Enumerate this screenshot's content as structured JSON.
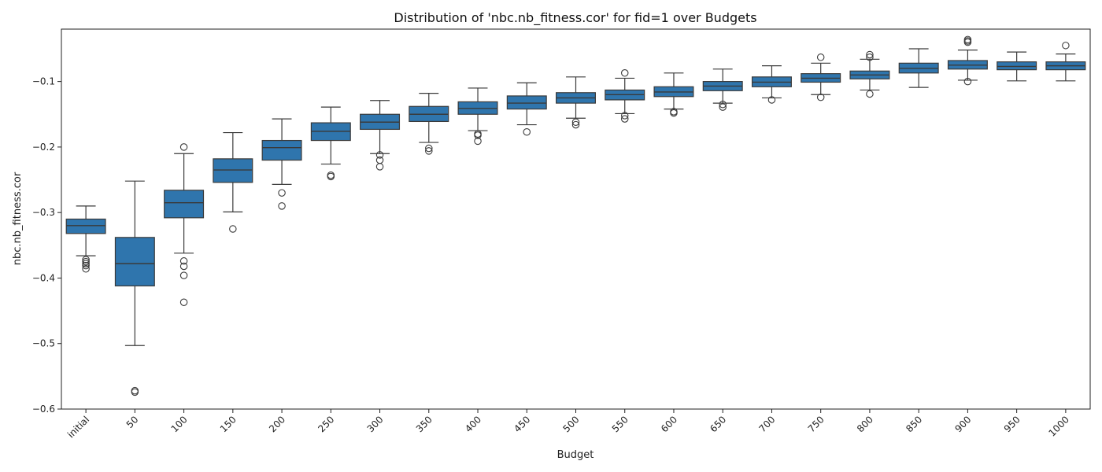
{
  "chart_data": {
    "type": "box",
    "title": "Distribution of 'nbc.nb_fitness.cor' for fid=1 over Budgets",
    "xlabel": "Budget",
    "ylabel": "nbc.nb_fitness.cor",
    "ylim": [
      -0.6,
      -0.02
    ],
    "y_ticks": [
      -0.6,
      -0.5,
      -0.4,
      -0.3,
      -0.2,
      -0.1
    ],
    "y_tick_labels": [
      "−0.6",
      "−0.5",
      "−0.4",
      "−0.3",
      "−0.2",
      "−0.1"
    ],
    "grid": false,
    "box_color": "#2f75ad",
    "line_color": "#3a3a3a",
    "categories": [
      "initial",
      "50",
      "100",
      "150",
      "200",
      "250",
      "300",
      "350",
      "400",
      "450",
      "500",
      "550",
      "600",
      "650",
      "700",
      "750",
      "800",
      "850",
      "900",
      "950",
      "1000"
    ],
    "boxes": [
      {
        "whislo": -0.366,
        "q1": -0.332,
        "med": -0.32,
        "q3": -0.31,
        "whishi": -0.29,
        "fliers": [
          -0.372,
          -0.375,
          -0.378,
          -0.381,
          -0.386
        ]
      },
      {
        "whislo": -0.503,
        "q1": -0.412,
        "med": -0.378,
        "q3": -0.338,
        "whishi": -0.252,
        "fliers": [
          -0.572,
          -0.574
        ]
      },
      {
        "whislo": -0.362,
        "q1": -0.308,
        "med": -0.285,
        "q3": -0.266,
        "whishi": -0.21,
        "fliers": [
          -0.2,
          -0.374,
          -0.382,
          -0.396,
          -0.437
        ]
      },
      {
        "whislo": -0.299,
        "q1": -0.254,
        "med": -0.235,
        "q3": -0.218,
        "whishi": -0.178,
        "fliers": [
          -0.325
        ]
      },
      {
        "whislo": -0.257,
        "q1": -0.22,
        "med": -0.201,
        "q3": -0.19,
        "whishi": -0.157,
        "fliers": [
          -0.27,
          -0.29
        ]
      },
      {
        "whislo": -0.226,
        "q1": -0.19,
        "med": -0.176,
        "q3": -0.163,
        "whishi": -0.139,
        "fliers": [
          -0.243,
          -0.245
        ]
      },
      {
        "whislo": -0.21,
        "q1": -0.173,
        "med": -0.162,
        "q3": -0.15,
        "whishi": -0.129,
        "fliers": [
          -0.212,
          -0.22,
          -0.23
        ]
      },
      {
        "whislo": -0.193,
        "q1": -0.161,
        "med": -0.15,
        "q3": -0.138,
        "whishi": -0.118,
        "fliers": [
          -0.202,
          -0.206
        ]
      },
      {
        "whislo": -0.175,
        "q1": -0.15,
        "med": -0.141,
        "q3": -0.131,
        "whishi": -0.11,
        "fliers": [
          -0.18,
          -0.182,
          -0.191
        ]
      },
      {
        "whislo": -0.166,
        "q1": -0.142,
        "med": -0.133,
        "q3": -0.122,
        "whishi": -0.102,
        "fliers": [
          -0.177
        ]
      },
      {
        "whislo": -0.156,
        "q1": -0.133,
        "med": -0.125,
        "q3": -0.117,
        "whishi": -0.093,
        "fliers": [
          -0.162,
          -0.166
        ]
      },
      {
        "whislo": -0.149,
        "q1": -0.128,
        "med": -0.12,
        "q3": -0.113,
        "whishi": -0.095,
        "fliers": [
          -0.087,
          -0.152,
          -0.157
        ]
      },
      {
        "whislo": -0.142,
        "q1": -0.123,
        "med": -0.116,
        "q3": -0.108,
        "whishi": -0.087,
        "fliers": [
          -0.146,
          -0.148
        ]
      },
      {
        "whislo": -0.133,
        "q1": -0.114,
        "med": -0.107,
        "q3": -0.1,
        "whishi": -0.081,
        "fliers": [
          -0.135,
          -0.139
        ]
      },
      {
        "whislo": -0.125,
        "q1": -0.108,
        "med": -0.101,
        "q3": -0.093,
        "whishi": -0.076,
        "fliers": [
          -0.128
        ]
      },
      {
        "whislo": -0.12,
        "q1": -0.101,
        "med": -0.095,
        "q3": -0.088,
        "whishi": -0.072,
        "fliers": [
          -0.063,
          -0.124
        ]
      },
      {
        "whislo": -0.113,
        "q1": -0.096,
        "med": -0.09,
        "q3": -0.084,
        "whishi": -0.066,
        "fliers": [
          -0.059,
          -0.063,
          -0.119
        ]
      },
      {
        "whislo": -0.109,
        "q1": -0.087,
        "med": -0.08,
        "q3": -0.072,
        "whishi": -0.05,
        "fliers": []
      },
      {
        "whislo": -0.098,
        "q1": -0.081,
        "med": -0.075,
        "q3": -0.068,
        "whishi": -0.052,
        "fliers": [
          -0.036,
          -0.038,
          -0.04,
          -0.1
        ]
      },
      {
        "whislo": -0.099,
        "q1": -0.082,
        "med": -0.077,
        "q3": -0.07,
        "whishi": -0.055,
        "fliers": []
      },
      {
        "whislo": -0.099,
        "q1": -0.082,
        "med": -0.076,
        "q3": -0.07,
        "whishi": -0.058,
        "fliers": [
          -0.045
        ]
      }
    ]
  }
}
